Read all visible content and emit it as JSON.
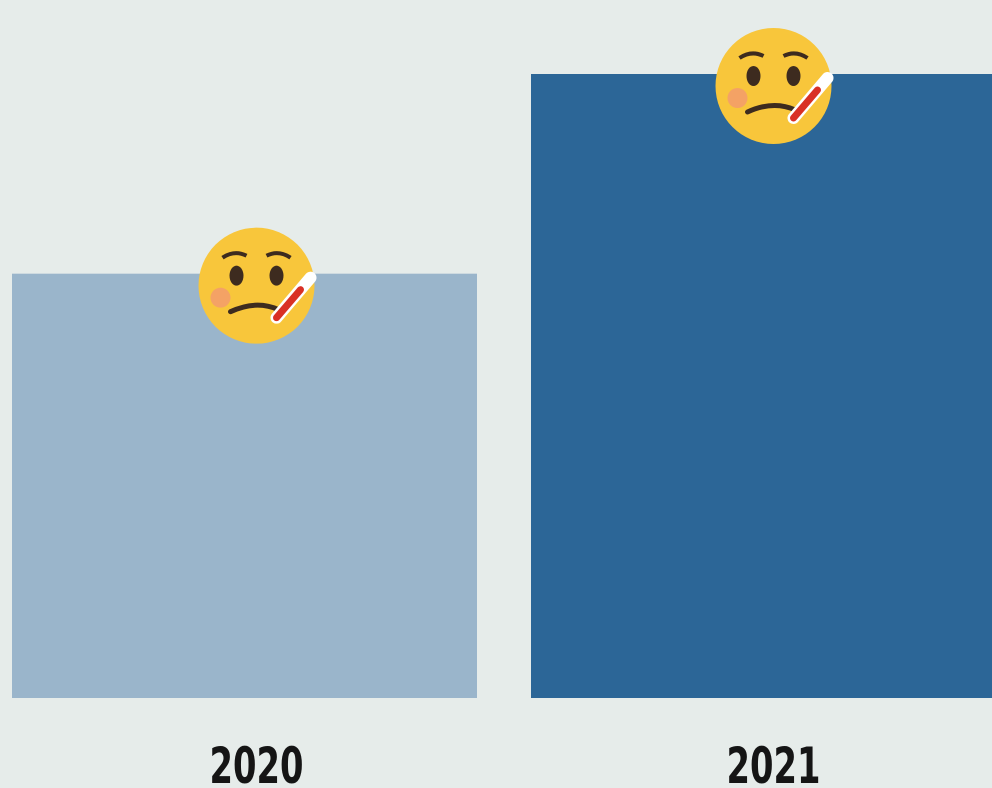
{
  "chart_data": {
    "type": "bar",
    "categories": [
      "2020",
      "2021"
    ],
    "values": [
      68,
      100
    ],
    "colors": [
      "#9ab5cb",
      "#2c6697"
    ],
    "ylim": [
      0,
      100
    ]
  }
}
